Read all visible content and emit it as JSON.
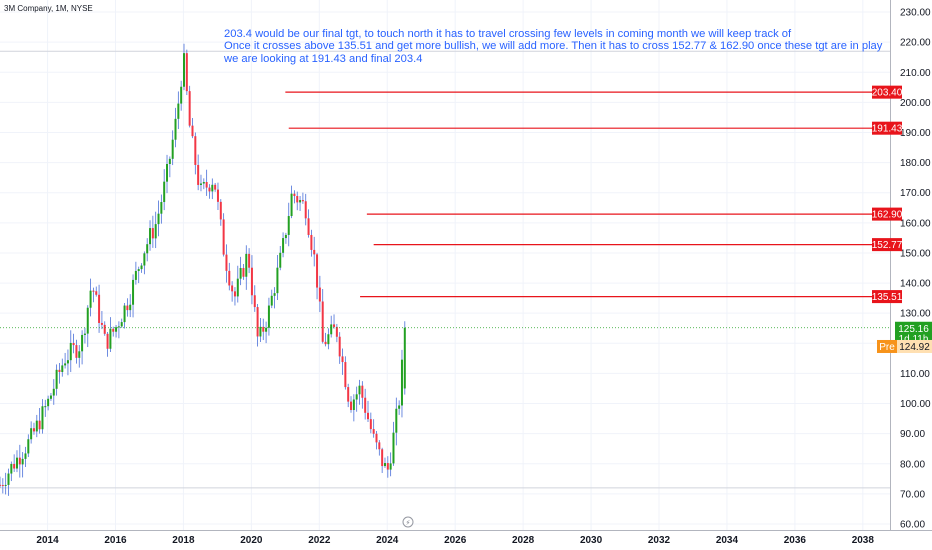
{
  "header": {
    "symbol_title": "3M Company, 1M, NYSE"
  },
  "annotation": {
    "lines": [
      "203.4 would be our final tgt, to touch north it has to travel crossing few levels in coming month we will keep track of",
      "Once it crosses above 135.51 and get more bullish, we will add more. Then it has to cross 152.77 & 162.90 once these tgt are in play",
      "we are looking at 191.43 and final 203.4"
    ]
  },
  "colors": {
    "up": "#089981",
    "up_candle": "#22a022",
    "down": "#f23645",
    "target_line": "#e8141b",
    "current_price": "#22a022",
    "premarket": "#f7931a",
    "annotation": "#2962ff",
    "grid": "#f0f3fa",
    "axis_border": "#b2b5be"
  },
  "chart_data": {
    "type": "candlestick",
    "title": "3M Company, 1M, NYSE",
    "y_axis": {
      "range": [
        58,
        234
      ],
      "ticks": [
        60,
        70,
        80,
        90,
        100,
        110,
        120,
        130,
        140,
        150,
        160,
        170,
        180,
        190,
        200,
        210,
        220,
        230
      ],
      "tick_labels": [
        "60.00",
        "70.00",
        "80.00",
        "90.00",
        "100.00",
        "110.00",
        "120.00",
        "130.00",
        "140.00",
        "150.00",
        "160.00",
        "170.00",
        "180.00",
        "190.00",
        "200.00",
        "210.00",
        "220.00",
        "230.00"
      ],
      "position": "right"
    },
    "x_axis": {
      "range": [
        2012.6,
        2038.8
      ],
      "ticks": [
        2014,
        2016,
        2018,
        2020,
        2022,
        2024,
        2026,
        2028,
        2030,
        2032,
        2034,
        2036,
        2038
      ],
      "tick_labels": [
        "2014",
        "2016",
        "2018",
        "2020",
        "2022",
        "2024",
        "2026",
        "2028",
        "2030",
        "2032",
        "2034",
        "2036",
        "2038"
      ]
    },
    "anchors": [
      [
        2012.6,
        73
      ],
      [
        2013.0,
        80
      ],
      [
        2013.5,
        88
      ],
      [
        2014.0,
        100
      ],
      [
        2014.5,
        115
      ],
      [
        2015.0,
        120
      ],
      [
        2015.3,
        140
      ],
      [
        2015.7,
        120
      ],
      [
        2016.0,
        125
      ],
      [
        2016.4,
        135
      ],
      [
        2016.8,
        150
      ],
      [
        2017.2,
        160
      ],
      [
        2017.5,
        175
      ],
      [
        2017.8,
        195
      ],
      [
        2018.0,
        215
      ],
      [
        2018.2,
        190
      ],
      [
        2018.5,
        170
      ],
      [
        2018.9,
        175
      ],
      [
        2019.2,
        150
      ],
      [
        2019.5,
        135
      ],
      [
        2019.9,
        150
      ],
      [
        2020.2,
        120
      ],
      [
        2020.5,
        130
      ],
      [
        2020.9,
        150
      ],
      [
        2021.2,
        170
      ],
      [
        2021.6,
        165
      ],
      [
        2021.9,
        145
      ],
      [
        2022.1,
        120
      ],
      [
        2022.5,
        125
      ],
      [
        2022.9,
        100
      ],
      [
        2023.2,
        105
      ],
      [
        2023.6,
        88
      ],
      [
        2023.8,
        82
      ],
      [
        2024.0,
        77
      ],
      [
        2024.2,
        90
      ],
      [
        2024.4,
        105
      ],
      [
        2024.5,
        125.16
      ]
    ],
    "last_price": 125.16,
    "last_price_label": "125.16",
    "countdown_label": "1d 11h",
    "premarket": {
      "tag": "Pre",
      "value": 124.92,
      "label": "124.92"
    },
    "targets": [
      {
        "value": 203.4,
        "label": "203.40",
        "from_year": 2021.0
      },
      {
        "value": 191.43,
        "label": "191.43",
        "from_year": 2021.1
      },
      {
        "value": 162.9,
        "label": "162.90",
        "from_year": 2023.4
      },
      {
        "value": 152.77,
        "label": "152.77",
        "from_year": 2023.6
      },
      {
        "value": 135.51,
        "label": "135.51",
        "from_year": 2023.2
      }
    ],
    "reference_lines": [
      217,
      72
    ],
    "grid": true
  }
}
